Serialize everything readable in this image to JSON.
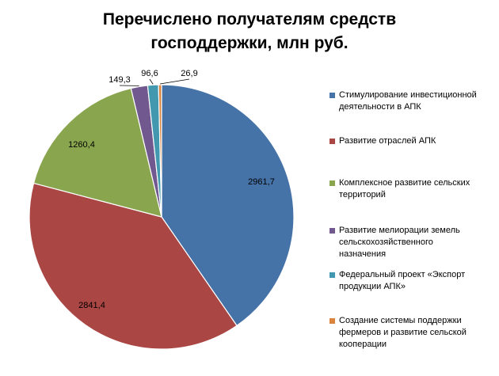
{
  "chart_data": {
    "type": "pie",
    "title_lines": [
      "Перечислено получателям средств",
      "господдержки, млн руб."
    ],
    "categories": [
      "Стимулирование инвестиционной деятельности в АПК",
      "Развитие отраслей АПК",
      "Комплексное развитие сельских территорий",
      "Развитие мелиорации земель сельскохозяйственного назначения",
      "Федеральный проект «Экспорт продукции АПК»",
      "Создание системы поддержки фермеров и развитие сельской кооперации"
    ],
    "legend_lines": [
      "Стимулирование инвестиционной\nдеятельности в АПК",
      "Развитие отраслей АПК",
      "Комплексное развитие сельских\nтерриторий",
      "Развитие мелиорации земель\nсельскохозяйственного\nназначения",
      "Федеральный проект «Экспорт\nпродукции АПК»",
      "Создание системы поддержки\nфермеров и развитие сельской\nкооперации"
    ],
    "values": [
      2961.7,
      2841.4,
      1260.4,
      149.3,
      96.6,
      26.9
    ],
    "value_labels": [
      "2961,7",
      "2841,4",
      "1260,4",
      "149,3",
      "96,6",
      "26,9"
    ],
    "colors": [
      "#4572A7",
      "#AA4643",
      "#89A54E",
      "#71588F",
      "#4198AF",
      "#DB843D"
    ],
    "start": "12 o'clock",
    "direction": "clockwise",
    "legend_position": "right"
  }
}
